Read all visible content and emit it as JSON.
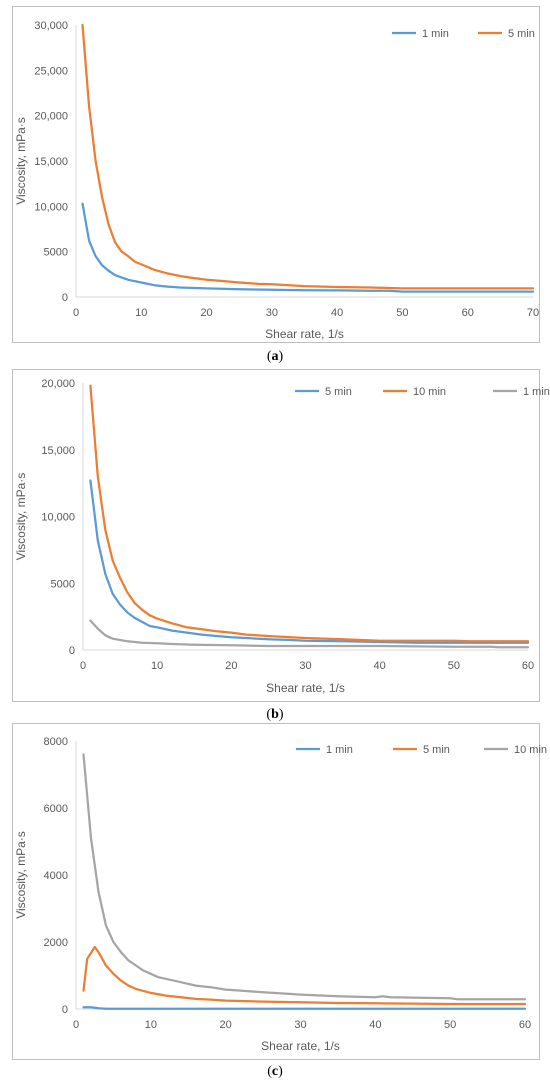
{
  "captions": [
    "a",
    "b",
    "c"
  ],
  "chart_data": [
    {
      "type": "line",
      "title": "",
      "xlabel": "Shear rate, 1/s",
      "ylabel": "Viscosity, mPa·s",
      "xlim": [
        0,
        70
      ],
      "ylim": [
        0,
        30000
      ],
      "xticks": [
        0,
        10,
        20,
        30,
        40,
        50,
        60,
        70
      ],
      "yticks": [
        0,
        5000,
        10000,
        15000,
        20000,
        25000,
        30000
      ],
      "ytick_labels": [
        "0",
        "5000",
        "10,000",
        "15,000",
        "20,000",
        "25,000",
        "30,000"
      ],
      "grid": false,
      "legend_position": "top-right",
      "series": [
        {
          "name": "1 min",
          "color": "#5b9bd5",
          "points": [
            [
              1,
              10300
            ],
            [
              2,
              6200
            ],
            [
              3,
              4500
            ],
            [
              4,
              3500
            ],
            [
              5,
              2900
            ],
            [
              6,
              2400
            ],
            [
              8,
              1900
            ],
            [
              10,
              1600
            ],
            [
              12,
              1300
            ],
            [
              14,
              1150
            ],
            [
              16,
              1050
            ],
            [
              20,
              950
            ],
            [
              25,
              850
            ],
            [
              30,
              800
            ],
            [
              35,
              750
            ],
            [
              40,
              730
            ],
            [
              45,
              700
            ],
            [
              48,
              700
            ],
            [
              50,
              600
            ],
            [
              55,
              600
            ],
            [
              60,
              600
            ],
            [
              65,
              600
            ],
            [
              70,
              600
            ]
          ]
        },
        {
          "name": "5 min",
          "color": "#ed7d31",
          "points": [
            [
              1,
              30000
            ],
            [
              2,
              21000
            ],
            [
              3,
              15000
            ],
            [
              4,
              11000
            ],
            [
              5,
              8000
            ],
            [
              6,
              6000
            ],
            [
              7,
              5000
            ],
            [
              8,
              4500
            ],
            [
              9,
              3900
            ],
            [
              10,
              3600
            ],
            [
              12,
              3000
            ],
            [
              14,
              2600
            ],
            [
              16,
              2300
            ],
            [
              18,
              2100
            ],
            [
              20,
              1900
            ],
            [
              22,
              1800
            ],
            [
              25,
              1600
            ],
            [
              28,
              1450
            ],
            [
              30,
              1400
            ],
            [
              35,
              1200
            ],
            [
              40,
              1100
            ],
            [
              45,
              1050
            ],
            [
              50,
              950
            ],
            [
              55,
              950
            ],
            [
              60,
              950
            ],
            [
              65,
              950
            ],
            [
              70,
              950
            ]
          ]
        }
      ]
    },
    {
      "type": "line",
      "title": "",
      "xlabel": "Shear rate, 1/s",
      "ylabel": "Viscosity, mPa·s",
      "xlim": [
        0,
        60
      ],
      "ylim": [
        0,
        20000
      ],
      "xticks": [
        0,
        10,
        20,
        30,
        40,
        50,
        60
      ],
      "yticks": [
        0,
        5000,
        10000,
        15000,
        20000
      ],
      "ytick_labels": [
        "0",
        "5000",
        "10,000",
        "15,000",
        "20,000"
      ],
      "grid": false,
      "legend_position": "top-right",
      "series": [
        {
          "name": "5 min",
          "color": "#5b9bd5",
          "points": [
            [
              1,
              12700
            ],
            [
              2,
              8200
            ],
            [
              3,
              5700
            ],
            [
              4,
              4200
            ],
            [
              5,
              3400
            ],
            [
              6,
              2800
            ],
            [
              7,
              2400
            ],
            [
              8,
              2100
            ],
            [
              9,
              1800
            ],
            [
              10,
              1700
            ],
            [
              12,
              1450
            ],
            [
              14,
              1300
            ],
            [
              16,
              1150
            ],
            [
              18,
              1050
            ],
            [
              20,
              950
            ],
            [
              22,
              900
            ],
            [
              25,
              800
            ],
            [
              28,
              750
            ],
            [
              30,
              700
            ],
            [
              35,
              650
            ],
            [
              40,
              600
            ],
            [
              45,
              550
            ],
            [
              50,
              550
            ],
            [
              55,
              550
            ],
            [
              60,
              550
            ]
          ]
        },
        {
          "name": "10 min",
          "color": "#ed7d31",
          "points": [
            [
              1,
              19800
            ],
            [
              2,
              13000
            ],
            [
              3,
              9000
            ],
            [
              4,
              6700
            ],
            [
              5,
              5400
            ],
            [
              6,
              4300
            ],
            [
              7,
              3500
            ],
            [
              8,
              3000
            ],
            [
              9,
              2600
            ],
            [
              10,
              2350
            ],
            [
              12,
              2000
            ],
            [
              14,
              1700
            ],
            [
              16,
              1550
            ],
            [
              18,
              1400
            ],
            [
              20,
              1300
            ],
            [
              22,
              1150
            ],
            [
              25,
              1050
            ],
            [
              28,
              950
            ],
            [
              30,
              900
            ],
            [
              35,
              800
            ],
            [
              40,
              700
            ],
            [
              45,
              700
            ],
            [
              50,
              700
            ],
            [
              52,
              650
            ],
            [
              55,
              650
            ],
            [
              60,
              650
            ]
          ]
        },
        {
          "name": "1 min",
          "color": "#a5a5a5",
          "points": [
            [
              1,
              2200
            ],
            [
              2,
              1600
            ],
            [
              3,
              1100
            ],
            [
              4,
              850
            ],
            [
              5,
              750
            ],
            [
              6,
              650
            ],
            [
              8,
              550
            ],
            [
              10,
              500
            ],
            [
              12,
              450
            ],
            [
              15,
              400
            ],
            [
              20,
              350
            ],
            [
              25,
              300
            ],
            [
              30,
              300
            ],
            [
              40,
              300
            ],
            [
              50,
              250
            ],
            [
              55,
              250
            ],
            [
              56,
              200
            ],
            [
              60,
              200
            ]
          ]
        }
      ]
    },
    {
      "type": "line",
      "title": "",
      "xlabel": "Shear rate, 1/s",
      "ylabel": "Viscosity, mPa·s",
      "xlim": [
        0,
        60
      ],
      "ylim": [
        0,
        8000
      ],
      "xticks": [
        0,
        10,
        20,
        30,
        40,
        50,
        60
      ],
      "yticks": [
        0,
        2000,
        4000,
        6000,
        8000
      ],
      "ytick_labels": [
        "0",
        "2000",
        "4000",
        "6000",
        "8000"
      ],
      "grid": false,
      "legend_position": "top-right",
      "series": [
        {
          "name": "1 min",
          "color": "#5b9bd5",
          "points": [
            [
              1,
              50
            ],
            [
              2,
              50
            ],
            [
              3,
              20
            ],
            [
              4,
              10
            ],
            [
              5,
              10
            ],
            [
              10,
              10
            ],
            [
              20,
              10
            ],
            [
              30,
              10
            ],
            [
              40,
              10
            ],
            [
              50,
              10
            ],
            [
              60,
              10
            ]
          ]
        },
        {
          "name": "5 min",
          "color": "#ed7d31",
          "points": [
            [
              1,
              550
            ],
            [
              1.5,
              1500
            ],
            [
              2.5,
              1850
            ],
            [
              3,
              1700
            ],
            [
              4,
              1300
            ],
            [
              5,
              1050
            ],
            [
              6,
              850
            ],
            [
              7,
              700
            ],
            [
              8,
              600
            ],
            [
              10,
              480
            ],
            [
              12,
              400
            ],
            [
              14,
              350
            ],
            [
              16,
              300
            ],
            [
              18,
              280
            ],
            [
              20,
              250
            ],
            [
              25,
              220
            ],
            [
              30,
              200
            ],
            [
              35,
              180
            ],
            [
              40,
              170
            ],
            [
              45,
              160
            ],
            [
              50,
              150
            ],
            [
              55,
              150
            ],
            [
              60,
              150
            ]
          ]
        },
        {
          "name": "10 min",
          "color": "#a5a5a5",
          "points": [
            [
              1,
              7600
            ],
            [
              2,
              5100
            ],
            [
              3,
              3500
            ],
            [
              4,
              2500
            ],
            [
              5,
              2000
            ],
            [
              6,
              1700
            ],
            [
              7,
              1450
            ],
            [
              8,
              1300
            ],
            [
              9,
              1150
            ],
            [
              10,
              1050
            ],
            [
              11,
              950
            ],
            [
              12,
              900
            ],
            [
              14,
              800
            ],
            [
              16,
              700
            ],
            [
              18,
              650
            ],
            [
              20,
              580
            ],
            [
              22,
              550
            ],
            [
              25,
              500
            ],
            [
              28,
              460
            ],
            [
              30,
              430
            ],
            [
              35,
              380
            ],
            [
              40,
              350
            ],
            [
              41,
              380
            ],
            [
              42,
              350
            ],
            [
              45,
              340
            ],
            [
              50,
              320
            ],
            [
              51,
              290
            ],
            [
              55,
              290
            ],
            [
              60,
              290
            ]
          ]
        }
      ]
    }
  ]
}
